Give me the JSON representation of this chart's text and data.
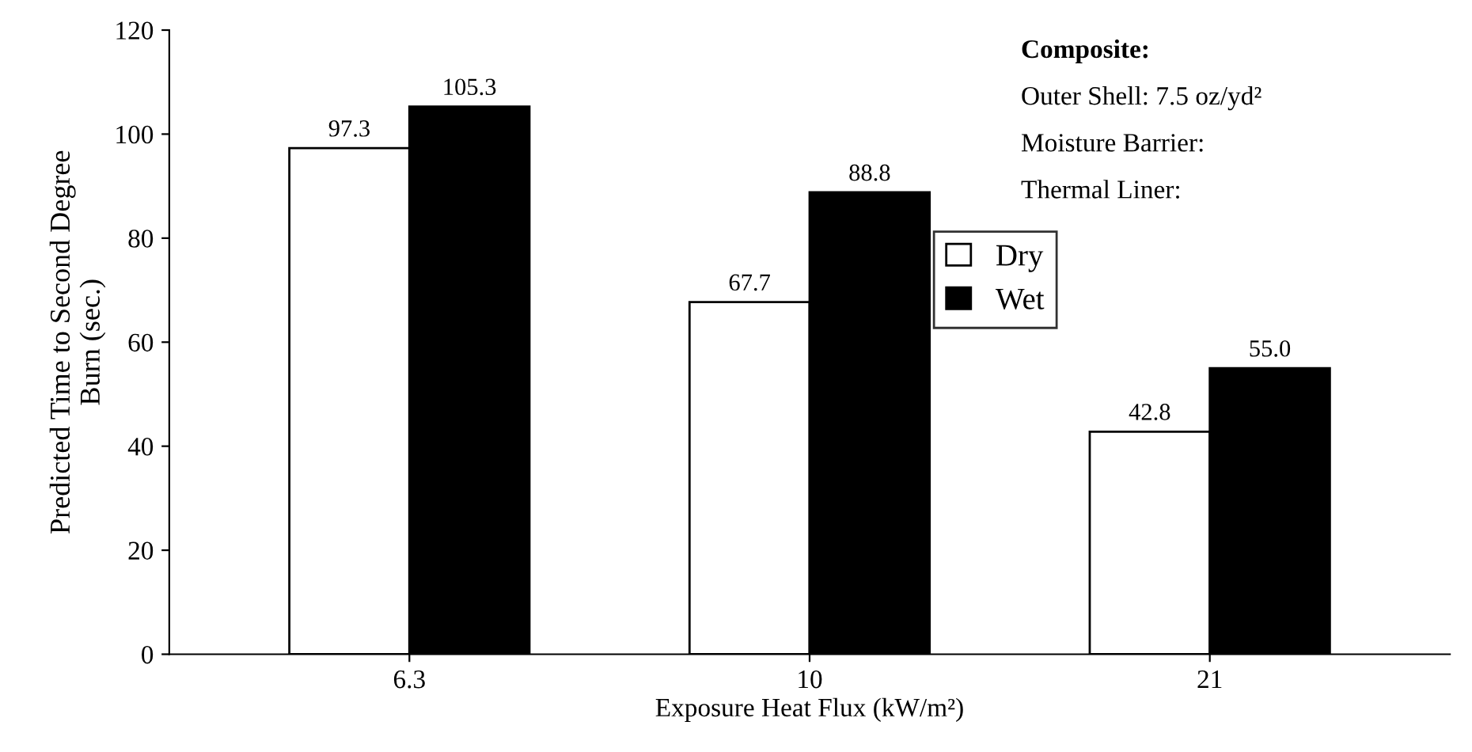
{
  "chart_data": {
    "type": "bar",
    "xlabel": "Exposure Heat Flux (kW/m²)",
    "ylabel": "Predicted Time to Second Degree\nBurn (sec.)",
    "categories": [
      "6.3",
      "10",
      "21"
    ],
    "series": [
      {
        "name": "Dry",
        "color": "#ffffff",
        "values": [
          97.3,
          67.7,
          42.8
        ],
        "value_labels": [
          "97.3",
          "67.7",
          "42.8"
        ]
      },
      {
        "name": "Wet",
        "color": "#000000",
        "values": [
          105.3,
          88.8,
          55.0
        ],
        "value_labels": [
          "105.3",
          "88.8",
          "55.0"
        ]
      }
    ],
    "ylim": [
      0,
      120
    ],
    "yticks": [
      0,
      20,
      40,
      60,
      80,
      100,
      120
    ],
    "legend": "right",
    "grid": false,
    "annotations": [
      "Composite:",
      "Outer Shell: 7.5 oz/yd²",
      "Moisture Barrier:",
      "Thermal Liner:"
    ]
  }
}
